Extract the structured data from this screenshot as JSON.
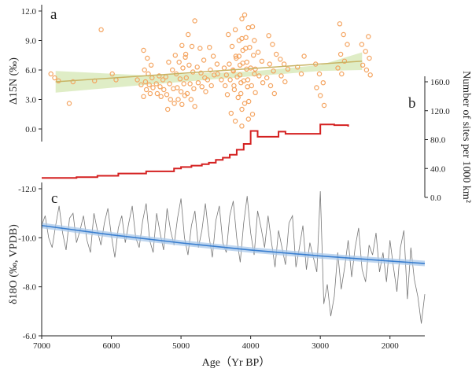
{
  "chart_data": [
    {
      "panel": "a",
      "type": "scatter",
      "ylabel": "Δ15N (‰)",
      "ylim": [
        -1.5,
        12.5
      ],
      "yticks": [
        "12.0",
        "9.0",
        "6.0",
        "3.0",
        "0.0"
      ],
      "xlim_reversed": [
        7000,
        1500
      ],
      "point_color": "#f4a460",
      "fit_color": "#c8b464",
      "band_color": "#dcebc0",
      "fit_line": {
        "x": [
          6800,
          2400
        ],
        "y": [
          4.8,
          6.9
        ]
      },
      "fit_band_upper": {
        "x": [
          6800,
          5500,
          4000,
          3000,
          2400
        ],
        "y": [
          5.9,
          5.45,
          5.85,
          6.5,
          7.8
        ]
      },
      "fit_band_lower": {
        "x": [
          6800,
          5500,
          4000,
          3000,
          2400
        ],
        "y": [
          3.7,
          4.5,
          5.35,
          5.9,
          6.0
        ]
      },
      "clusters": [
        {
          "x": 6800,
          "ys": [
            5.6,
            5.2,
            4.9
          ]
        },
        {
          "x": 6550,
          "ys": [
            2.6,
            4.8
          ]
        },
        {
          "x": 6200,
          "ys": [
            10.1,
            4.9
          ]
        },
        {
          "x": 6000,
          "ys": [
            5.6,
            5.0
          ]
        },
        {
          "x": 5600,
          "ys": [
            5.0,
            4.5
          ]
        },
        {
          "x": 5470,
          "ys": [
            8.0,
            7.2,
            6.5,
            6.0,
            5.6,
            5.2,
            4.8,
            4.5,
            4.2,
            4.0,
            3.6,
            3.3
          ]
        },
        {
          "x": 5300,
          "ys": [
            5.4,
            5.0,
            4.6,
            4.3,
            4.0,
            3.6,
            3.3
          ]
        },
        {
          "x": 5150,
          "ys": [
            7.5,
            6.8,
            6.0,
            5.3,
            4.6,
            4.1,
            3.5,
            3.0,
            2.6,
            2.0
          ]
        },
        {
          "x": 5000,
          "ys": [
            8.5,
            7.6,
            6.8,
            6.2,
            5.6,
            5.1,
            4.6,
            4.2,
            3.8,
            3.4,
            3.0,
            2.5
          ]
        },
        {
          "x": 4870,
          "ys": [
            11.0,
            9.6,
            8.4,
            7.3,
            6.5,
            5.8,
            5.2,
            4.6,
            4.1,
            3.6,
            3.0,
            2.3
          ]
        },
        {
          "x": 4700,
          "ys": [
            8.2,
            7.0,
            6.3,
            5.7,
            5.2,
            4.7,
            4.3,
            3.8
          ]
        },
        {
          "x": 4550,
          "ys": [
            8.3,
            7.4,
            6.6,
            6.0,
            5.5,
            5.0,
            4.4
          ]
        },
        {
          "x": 4420,
          "ys": [
            6.2,
            5.6,
            5.0,
            4.4
          ]
        },
        {
          "x": 4280,
          "ys": [
            9.6,
            8.4,
            7.4,
            6.6,
            6.0,
            5.5,
            5.0,
            4.4,
            3.5,
            1.6
          ]
        },
        {
          "x": 4180,
          "ys": [
            11.2,
            10.1,
            9.0,
            8.0,
            7.2,
            6.5,
            5.9,
            5.3,
            4.7,
            4.0,
            3.2,
            2.0,
            0.8
          ]
        },
        {
          "x": 4100,
          "ys": [
            11.6,
            10.3,
            9.2,
            8.2,
            7.4,
            6.7,
            6.1,
            5.5,
            4.9,
            4.3,
            3.6,
            2.6,
            1.0,
            0.3
          ]
        },
        {
          "x": 4000,
          "ys": [
            10.4,
            9.3,
            8.3,
            7.5,
            6.8,
            6.2,
            5.6,
            5.0,
            4.4,
            3.7,
            2.8,
            1.5
          ]
        },
        {
          "x": 3880,
          "ys": [
            9.0,
            7.8,
            6.9,
            6.1,
            5.4,
            4.7
          ]
        },
        {
          "x": 3700,
          "ys": [
            9.5,
            8.6,
            7.6,
            6.6,
            5.9,
            5.2,
            4.4,
            3.6
          ]
        },
        {
          "x": 3520,
          "ys": [
            7.1,
            6.6,
            6.1,
            5.4,
            4.8
          ]
        },
        {
          "x": 3300,
          "ys": [
            7.4,
            6.3,
            5.6
          ]
        },
        {
          "x": 3000,
          "ys": [
            6.6,
            5.6,
            4.7,
            4.2,
            3.4,
            2.4
          ]
        },
        {
          "x": 2680,
          "ys": [
            10.7,
            9.6,
            8.6,
            7.6,
            6.9,
            6.2,
            5.6
          ]
        },
        {
          "x": 2350,
          "ys": [
            9.4,
            8.6,
            7.9,
            7.2,
            6.5,
            6.0,
            5.5
          ]
        }
      ]
    },
    {
      "panel": "b",
      "type": "line",
      "style": "step",
      "ylabel": "Number of sites per 1000 km²",
      "ylim": [
        0,
        165
      ],
      "yticks": [
        "0.0",
        "40.0",
        "80.0",
        "120.0",
        "160.0"
      ],
      "line_color": "#d42020",
      "x": [
        7000,
        6500,
        6200,
        5900,
        5500,
        5100,
        5000,
        4850,
        4700,
        4600,
        4500,
        4400,
        4300,
        4200,
        4100,
        4000,
        3900,
        3850,
        3600,
        3500,
        3300,
        3000,
        2800,
        2600
      ],
      "y": [
        27,
        28,
        30,
        33,
        36,
        40,
        42,
        44,
        46,
        48,
        52,
        55,
        59,
        66,
        74,
        92,
        84,
        84,
        91,
        88,
        88,
        101,
        100,
        98
      ]
    },
    {
      "panel": "c",
      "type": "line",
      "ylabel": "δ18O (‰, VPDB)",
      "xlabel": "Age（Yr BP）",
      "ylim_reversed": [
        -12.0,
        -6.0
      ],
      "yticks": [
        "-12.0",
        "-10.0",
        "-8.0",
        "-6.0"
      ],
      "xticks": [
        "7000",
        "6000",
        "5000",
        "4000",
        "3000",
        "2000"
      ],
      "line_color": "#777777",
      "trend_color": "#3a7fd0",
      "trend_band_color": "#a9c8ea",
      "trend": {
        "x": [
          7000,
          6000,
          5000,
          4000,
          3000,
          2000,
          1500
        ],
        "y": [
          -10.5,
          -10.12,
          -9.79,
          -9.5,
          -9.26,
          -9.05,
          -8.95
        ]
      },
      "x": [
        7000,
        6950,
        6900,
        6850,
        6800,
        6750,
        6700,
        6650,
        6600,
        6550,
        6500,
        6450,
        6400,
        6350,
        6300,
        6250,
        6200,
        6150,
        6100,
        6050,
        6000,
        5950,
        5900,
        5850,
        5800,
        5750,
        5700,
        5650,
        5600,
        5550,
        5500,
        5450,
        5400,
        5350,
        5300,
        5250,
        5200,
        5150,
        5100,
        5050,
        5000,
        4950,
        4900,
        4850,
        4800,
        4750,
        4700,
        4650,
        4600,
        4550,
        4500,
        4450,
        4400,
        4350,
        4300,
        4250,
        4200,
        4150,
        4100,
        4050,
        4000,
        3950,
        3900,
        3850,
        3800,
        3750,
        3700,
        3650,
        3600,
        3550,
        3500,
        3450,
        3400,
        3350,
        3300,
        3250,
        3200,
        3150,
        3100,
        3050,
        3000,
        2950,
        2900,
        2850,
        2800,
        2750,
        2700,
        2650,
        2600,
        2550,
        2500,
        2450,
        2400,
        2350,
        2300,
        2250,
        2200,
        2150,
        2100,
        2050,
        2000,
        1950,
        1900,
        1850,
        1800,
        1750,
        1700,
        1650,
        1600,
        1550,
        1500
      ],
      "y": [
        -10.5,
        -10.9,
        -10.0,
        -9.6,
        -10.5,
        -11.3,
        -10.2,
        -9.5,
        -10.8,
        -11.0,
        -9.8,
        -10.3,
        -10.9,
        -9.9,
        -9.4,
        -11.0,
        -10.3,
        -9.7,
        -10.6,
        -11.2,
        -10.1,
        -9.2,
        -10.4,
        -10.9,
        -9.8,
        -10.6,
        -11.3,
        -10.0,
        -9.6,
        -10.7,
        -11.4,
        -9.9,
        -9.4,
        -11.0,
        -10.2,
        -9.5,
        -11.2,
        -10.3,
        -9.7,
        -10.8,
        -11.6,
        -10.0,
        -9.3,
        -10.5,
        -11.1,
        -9.6,
        -10.3,
        -11.4,
        -10.1,
        -9.2,
        -10.7,
        -11.3,
        -9.8,
        -9.4,
        -10.9,
        -11.5,
        -10.0,
        -9.0,
        -10.6,
        -11.7,
        -10.2,
        -9.3,
        -11.1,
        -10.4,
        -9.6,
        -10.9,
        -9.8,
        -8.8,
        -10.3,
        -9.6,
        -8.9,
        -10.6,
        -10.9,
        -8.8,
        -9.6,
        -10.5,
        -8.7,
        -9.8,
        -9.2,
        -8.6,
        -11.9,
        -7.3,
        -8.1,
        -6.8,
        -7.6,
        -9.4,
        -7.9,
        -8.8,
        -9.9,
        -8.4,
        -9.6,
        -10.4,
        -8.7,
        -8.2,
        -9.7,
        -9.3,
        -10.2,
        -8.6,
        -9.4,
        -8.2,
        -9.9,
        -8.8,
        -7.8,
        -9.6,
        -10.3,
        -7.5,
        -9.6,
        -8.3,
        -7.6,
        -6.5,
        -7.7
      ]
    }
  ],
  "panel_labels": {
    "a": "a",
    "b": "b",
    "c": "c"
  }
}
